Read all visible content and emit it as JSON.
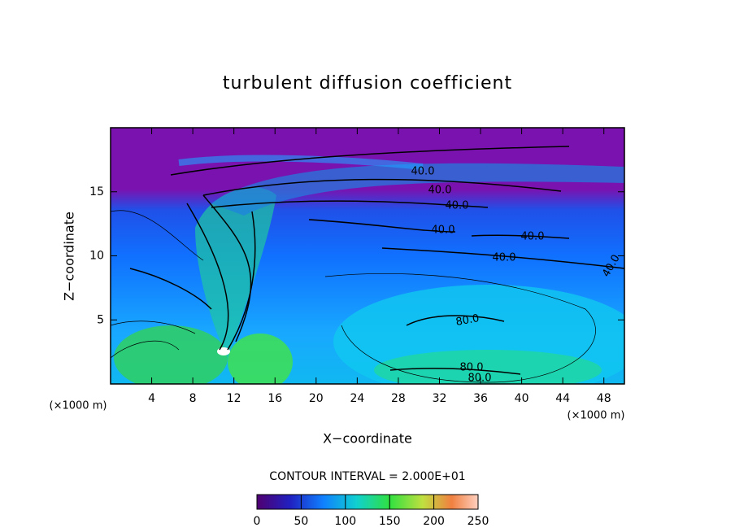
{
  "chart_data": {
    "type": "contour",
    "title": "turbulent diffusion coefficient",
    "x_label": "X−coordinate",
    "y_label": "Z−coordinate",
    "unit_label": "(×1000 m)",
    "xlim": [
      0,
      50
    ],
    "xticks": [
      4,
      8,
      12,
      16,
      20,
      24,
      28,
      32,
      36,
      40,
      44,
      48
    ],
    "ylim": [
      0,
      20
    ],
    "yticks": [
      5,
      10,
      15
    ],
    "contour_interval_text": "CONTOUR INTERVAL = 2.000E+01",
    "colorbar": {
      "lim": [
        0,
        250
      ],
      "ticks": [
        0,
        50,
        100,
        150,
        200,
        250
      ]
    },
    "contour_labels": [
      {
        "value": 40,
        "label": "40.0"
      },
      {
        "value": 40,
        "label": "40.0"
      },
      {
        "value": 40,
        "label": "40.0"
      },
      {
        "value": 40,
        "label": "40.0"
      },
      {
        "value": 40,
        "label": "40.0"
      },
      {
        "value": 40,
        "label": "40.0"
      },
      {
        "value": 40,
        "label": "40.0"
      },
      {
        "value": 80,
        "label": "80.0"
      },
      {
        "value": 80,
        "label": "80.0"
      },
      {
        "value": 80,
        "label": "80.0"
      }
    ]
  }
}
